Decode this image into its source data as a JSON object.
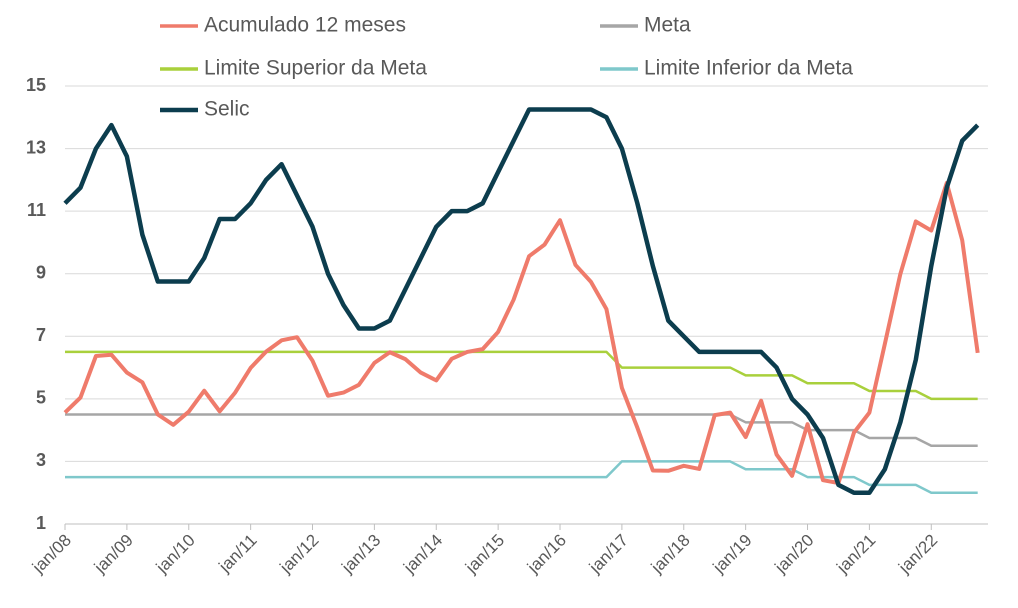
{
  "chart_data": {
    "type": "line",
    "categories": [
      "jan/08",
      null,
      null,
      null,
      "jan/09",
      null,
      null,
      null,
      "jan/10",
      null,
      null,
      null,
      "jan/11",
      null,
      null,
      null,
      "jan/12",
      null,
      null,
      null,
      "jan/13",
      null,
      null,
      null,
      "jan/14",
      null,
      null,
      null,
      "jan/15",
      null,
      null,
      null,
      "jan/16",
      null,
      null,
      null,
      "jan/17",
      null,
      null,
      null,
      "jan/18",
      null,
      null,
      null,
      "jan/19",
      null,
      null,
      null,
      "jan/20",
      null,
      null,
      null,
      "jan/21",
      null,
      null,
      null,
      "jan/22",
      null,
      null,
      null
    ],
    "series": [
      {
        "name": "Acumulado 12 meses",
        "color": "#ef7b6b",
        "values": [
          4.56,
          5.04,
          6.37,
          6.41,
          5.84,
          5.53,
          4.5,
          4.17,
          4.59,
          5.26,
          4.6,
          5.2,
          5.99,
          6.51,
          6.87,
          6.97,
          6.22,
          5.1,
          5.2,
          5.45,
          6.15,
          6.49,
          6.27,
          5.84,
          5.59,
          6.28,
          6.5,
          6.59,
          7.14,
          8.17,
          9.56,
          9.93,
          10.71,
          9.28,
          8.74,
          7.87,
          5.35,
          4.08,
          2.71,
          2.7,
          2.86,
          2.76,
          4.48,
          4.56,
          3.78,
          4.94,
          3.22,
          2.54,
          4.19,
          2.4,
          2.31,
          3.92,
          4.56,
          6.76,
          8.99,
          10.67,
          10.38,
          11.9,
          10.07,
          6.47
        ]
      },
      {
        "name": "Meta",
        "color": "#a6a6a6",
        "values": [
          4.5,
          4.5,
          4.5,
          4.5,
          4.5,
          4.5,
          4.5,
          4.5,
          4.5,
          4.5,
          4.5,
          4.5,
          4.5,
          4.5,
          4.5,
          4.5,
          4.5,
          4.5,
          4.5,
          4.5,
          4.5,
          4.5,
          4.5,
          4.5,
          4.5,
          4.5,
          4.5,
          4.5,
          4.5,
          4.5,
          4.5,
          4.5,
          4.5,
          4.5,
          4.5,
          4.5,
          4.5,
          4.5,
          4.5,
          4.5,
          4.5,
          4.5,
          4.5,
          4.5,
          4.25,
          4.25,
          4.25,
          4.25,
          4,
          4,
          4,
          4,
          3.75,
          3.75,
          3.75,
          3.75,
          3.5,
          3.5,
          3.5,
          3.5
        ]
      },
      {
        "name": "Limite Superior da Meta",
        "color": "#a9d03c",
        "values": [
          6.5,
          6.5,
          6.5,
          6.5,
          6.5,
          6.5,
          6.5,
          6.5,
          6.5,
          6.5,
          6.5,
          6.5,
          6.5,
          6.5,
          6.5,
          6.5,
          6.5,
          6.5,
          6.5,
          6.5,
          6.5,
          6.5,
          6.5,
          6.5,
          6.5,
          6.5,
          6.5,
          6.5,
          6.5,
          6.5,
          6.5,
          6.5,
          6.5,
          6.5,
          6.5,
          6.5,
          6,
          6,
          6,
          6,
          6,
          6,
          6,
          6,
          5.75,
          5.75,
          5.75,
          5.75,
          5.5,
          5.5,
          5.5,
          5.5,
          5.25,
          5.25,
          5.25,
          5.25,
          5,
          5,
          5,
          5
        ]
      },
      {
        "name": "Limite Inferior da Meta",
        "color": "#7fc8cb",
        "values": [
          2.5,
          2.5,
          2.5,
          2.5,
          2.5,
          2.5,
          2.5,
          2.5,
          2.5,
          2.5,
          2.5,
          2.5,
          2.5,
          2.5,
          2.5,
          2.5,
          2.5,
          2.5,
          2.5,
          2.5,
          2.5,
          2.5,
          2.5,
          2.5,
          2.5,
          2.5,
          2.5,
          2.5,
          2.5,
          2.5,
          2.5,
          2.5,
          2.5,
          2.5,
          2.5,
          2.5,
          3,
          3,
          3,
          3,
          3,
          3,
          3,
          3,
          2.75,
          2.75,
          2.75,
          2.75,
          2.5,
          2.5,
          2.5,
          2.5,
          2.25,
          2.25,
          2.25,
          2.25,
          2,
          2,
          2,
          2
        ]
      },
      {
        "name": "Selic",
        "color": "#0c3d4e",
        "values": [
          11.25,
          11.75,
          13,
          13.75,
          12.75,
          10.25,
          8.75,
          8.75,
          8.75,
          9.5,
          10.75,
          10.75,
          11.25,
          12,
          12.5,
          11.5,
          10.5,
          9,
          8,
          7.25,
          7.25,
          7.5,
          8.5,
          9.5,
          10.5,
          11,
          11,
          11.25,
          12.25,
          13.25,
          14.25,
          14.25,
          14.25,
          14.25,
          14.25,
          14,
          13,
          11.25,
          9.25,
          7.5,
          7,
          6.5,
          6.5,
          6.5,
          6.5,
          6.5,
          6,
          5,
          4.5,
          3.75,
          2.25,
          2,
          2,
          2.75,
          4.25,
          6.25,
          9.25,
          11.75,
          13.25,
          13.75
        ]
      }
    ],
    "ylim": [
      1,
      15
    ],
    "yticks": [
      1,
      3,
      5,
      7,
      9,
      11,
      13,
      15
    ],
    "grid": true,
    "legend": "top"
  }
}
